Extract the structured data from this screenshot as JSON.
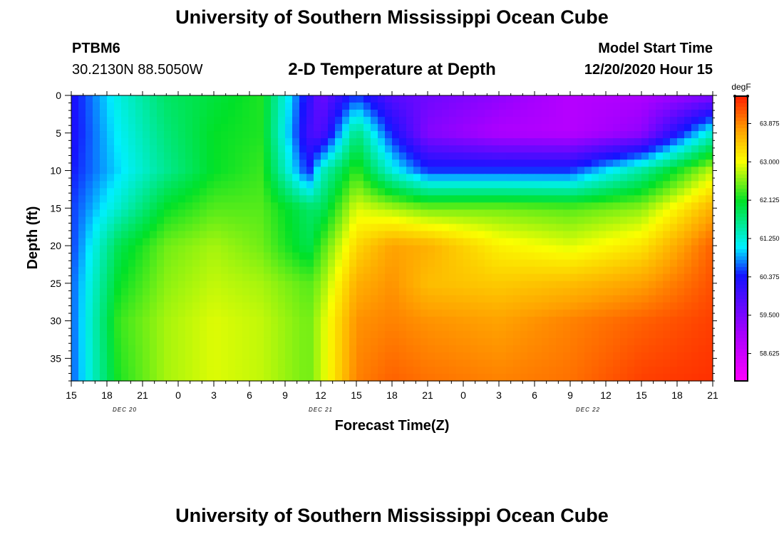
{
  "header": {
    "title": "University of Southern Mississippi Ocean Cube",
    "station_id": "PTBM6",
    "station_coords": "30.2130N 88.5050W",
    "plot_title": "2-D Temperature at Depth",
    "model_label": "Model Start Time",
    "model_start": "12/20/2020 Hour 15"
  },
  "footer": {
    "title": "University of Southern Mississippi Ocean Cube"
  },
  "chart_data": {
    "type": "heatmap",
    "title": "2-D Temperature at Depth",
    "xlabel": "Forecast Time(Z)",
    "ylabel": "Depth (ft)",
    "x_hours": [
      0,
      3,
      6,
      9,
      12,
      15,
      18,
      21,
      24,
      27,
      30,
      33,
      36,
      39,
      42,
      45,
      48,
      51,
      54
    ],
    "x_tick_labels": [
      "15",
      "18",
      "21",
      "0",
      "3",
      "6",
      "9",
      "12",
      "15",
      "18",
      "21",
      "0",
      "3",
      "6",
      "9",
      "12",
      "15",
      "18",
      "21"
    ],
    "date_labels": [
      {
        "hour": 4.5,
        "label": "DEC 20"
      },
      {
        "hour": 21,
        "label": "DEC 21"
      },
      {
        "hour": 43.5,
        "label": "DEC 22"
      }
    ],
    "xlim": [
      0,
      54
    ],
    "depth_ticks": [
      0,
      5,
      10,
      15,
      20,
      25,
      30,
      35
    ],
    "ylim": [
      0,
      38
    ],
    "colorbar": {
      "unit": "degF",
      "range": [
        58.0,
        64.5
      ],
      "tick_values": [
        58.625,
        59.5,
        60.375,
        61.25,
        62.125,
        63.0,
        63.875
      ],
      "tick_labels": [
        "58.625",
        "59.500",
        "60.375",
        "61.250",
        "62.125",
        "63.000",
        "63.875"
      ]
    },
    "grid_depths": [
      0,
      5,
      10,
      15,
      20,
      25,
      30,
      38
    ],
    "grid_hours": [
      0,
      4,
      8,
      12,
      16,
      20,
      21,
      24,
      27,
      30,
      36,
      42,
      48,
      54
    ],
    "values": [
      [
        60.3,
        61.2,
        61.8,
        62.0,
        62.2,
        60.2,
        59.6,
        60.5,
        59.8,
        59.6,
        59.3,
        58.9,
        59.0,
        59.4
      ],
      [
        60.3,
        61.1,
        61.7,
        62.1,
        62.2,
        60.0,
        59.8,
        61.7,
        60.4,
        59.4,
        59.0,
        58.9,
        59.3,
        61.3
      ],
      [
        60.4,
        61.0,
        61.6,
        62.1,
        62.3,
        60.4,
        61.3,
        62.3,
        61.2,
        60.5,
        60.5,
        60.5,
        61.5,
        62.8
      ],
      [
        60.5,
        61.3,
        62.1,
        62.4,
        62.4,
        61.8,
        61.8,
        62.9,
        62.7,
        62.5,
        62.5,
        62.4,
        62.6,
        63.6
      ],
      [
        60.5,
        61.9,
        62.5,
        62.7,
        62.5,
        61.9,
        62.3,
        63.3,
        63.7,
        63.6,
        63.1,
        62.9,
        63.2,
        64.1
      ],
      [
        60.6,
        62.1,
        62.6,
        62.8,
        62.7,
        62.4,
        62.6,
        63.6,
        63.8,
        63.5,
        63.4,
        63.5,
        63.7,
        64.2
      ],
      [
        60.6,
        62.3,
        62.7,
        62.9,
        62.8,
        62.5,
        62.8,
        63.8,
        63.9,
        63.8,
        63.7,
        63.9,
        64.1,
        64.3
      ],
      [
        60.6,
        62.2,
        62.7,
        62.9,
        62.8,
        62.5,
        62.8,
        63.9,
        64.1,
        64.0,
        63.9,
        64.0,
        64.3,
        64.4
      ]
    ]
  }
}
